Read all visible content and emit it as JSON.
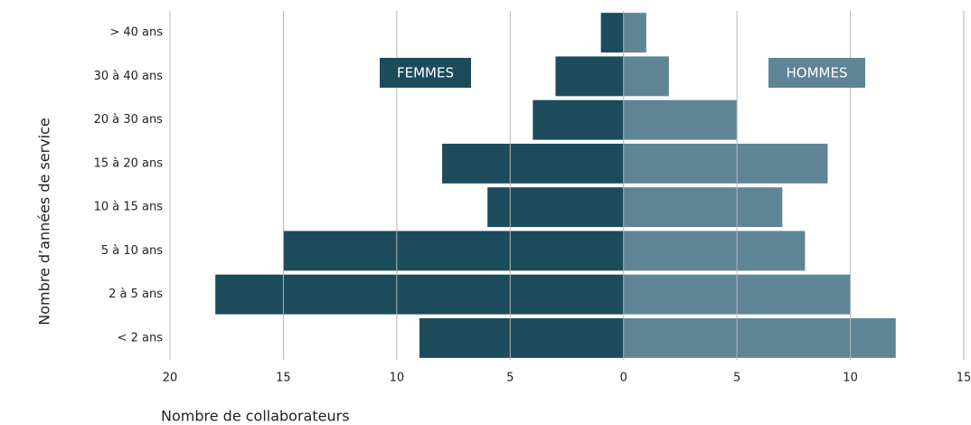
{
  "chart_data": {
    "type": "pyramid",
    "y_label": "Nombre d’années de service",
    "x_label": "Nombre de collaborateurs",
    "categories": [
      "> 40 ans",
      "30 à 40 ans",
      "20 à 30 ans",
      "15 à 20 ans",
      "10 à 15 ans",
      "5 à 10 ans",
      "2 à 5 ans",
      "< 2 ans"
    ],
    "series": [
      {
        "name": "FEMMES",
        "color": "#1c4b5c",
        "side": "left",
        "values": [
          1,
          3,
          4,
          8,
          6,
          15,
          18,
          9
        ]
      },
      {
        "name": "HOMMES",
        "color": "#5f8496",
        "side": "right",
        "values": [
          1,
          2,
          5,
          9,
          7,
          8,
          10,
          12
        ]
      }
    ],
    "xlim": [
      -20,
      15
    ],
    "xticks": [
      {
        "value": -20,
        "label": "20"
      },
      {
        "value": -15,
        "label": "15"
      },
      {
        "value": -10,
        "label": "10"
      },
      {
        "value": -5,
        "label": "5"
      },
      0,
      5,
      10,
      15
    ],
    "grid": true
  }
}
